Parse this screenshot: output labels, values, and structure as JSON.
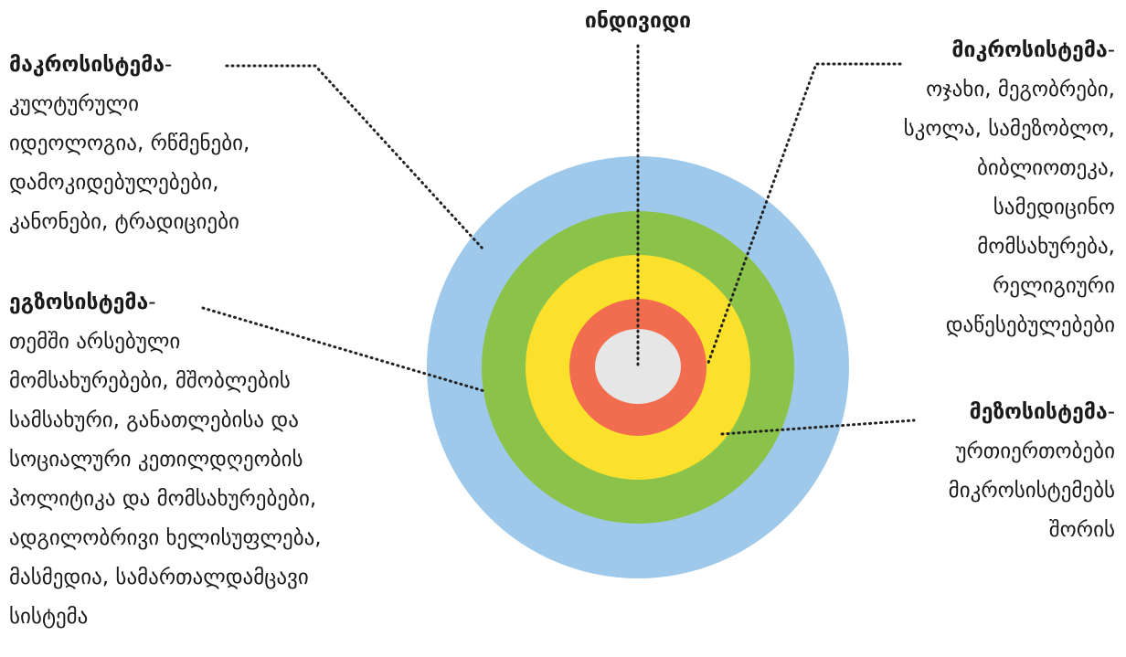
{
  "title": "ინდივიდი",
  "separator": "-",
  "systems": [
    {
      "name": "მაკროსისტემა",
      "description": [
        "კულტურული",
        "იდეოლოგია, რწმენები,",
        "დამოკიდებულებები,",
        "კანონები, ტრადიციები"
      ]
    },
    {
      "name": "ეგზოსისტემა",
      "description": [
        "თემში არსებული",
        "მომსახურებები, მშობლების",
        "სამსახური, განათლებისა და",
        "სოციალური კეთილდღეობის",
        "პოლიტიკა და მომსახურებები,",
        "ადგილობრივი ხელისუფლება,",
        "მასმედია, სამართალდამცავი",
        "სისტემა"
      ]
    },
    {
      "name": "მიკროსისტემა",
      "description": [
        "ოჯახი, მეგობრები,",
        "სკოლა, სამეზობლო,",
        "ბიბლიოთეკა,",
        "სამედიცინო",
        "მომსახურება,",
        "რელიგიური",
        "დაწესებულებები"
      ]
    },
    {
      "name": "მეზოსისტემა",
      "description": [
        "ურთიერთობები",
        "მიკროსისტემებს",
        "შორის"
      ]
    }
  ]
}
